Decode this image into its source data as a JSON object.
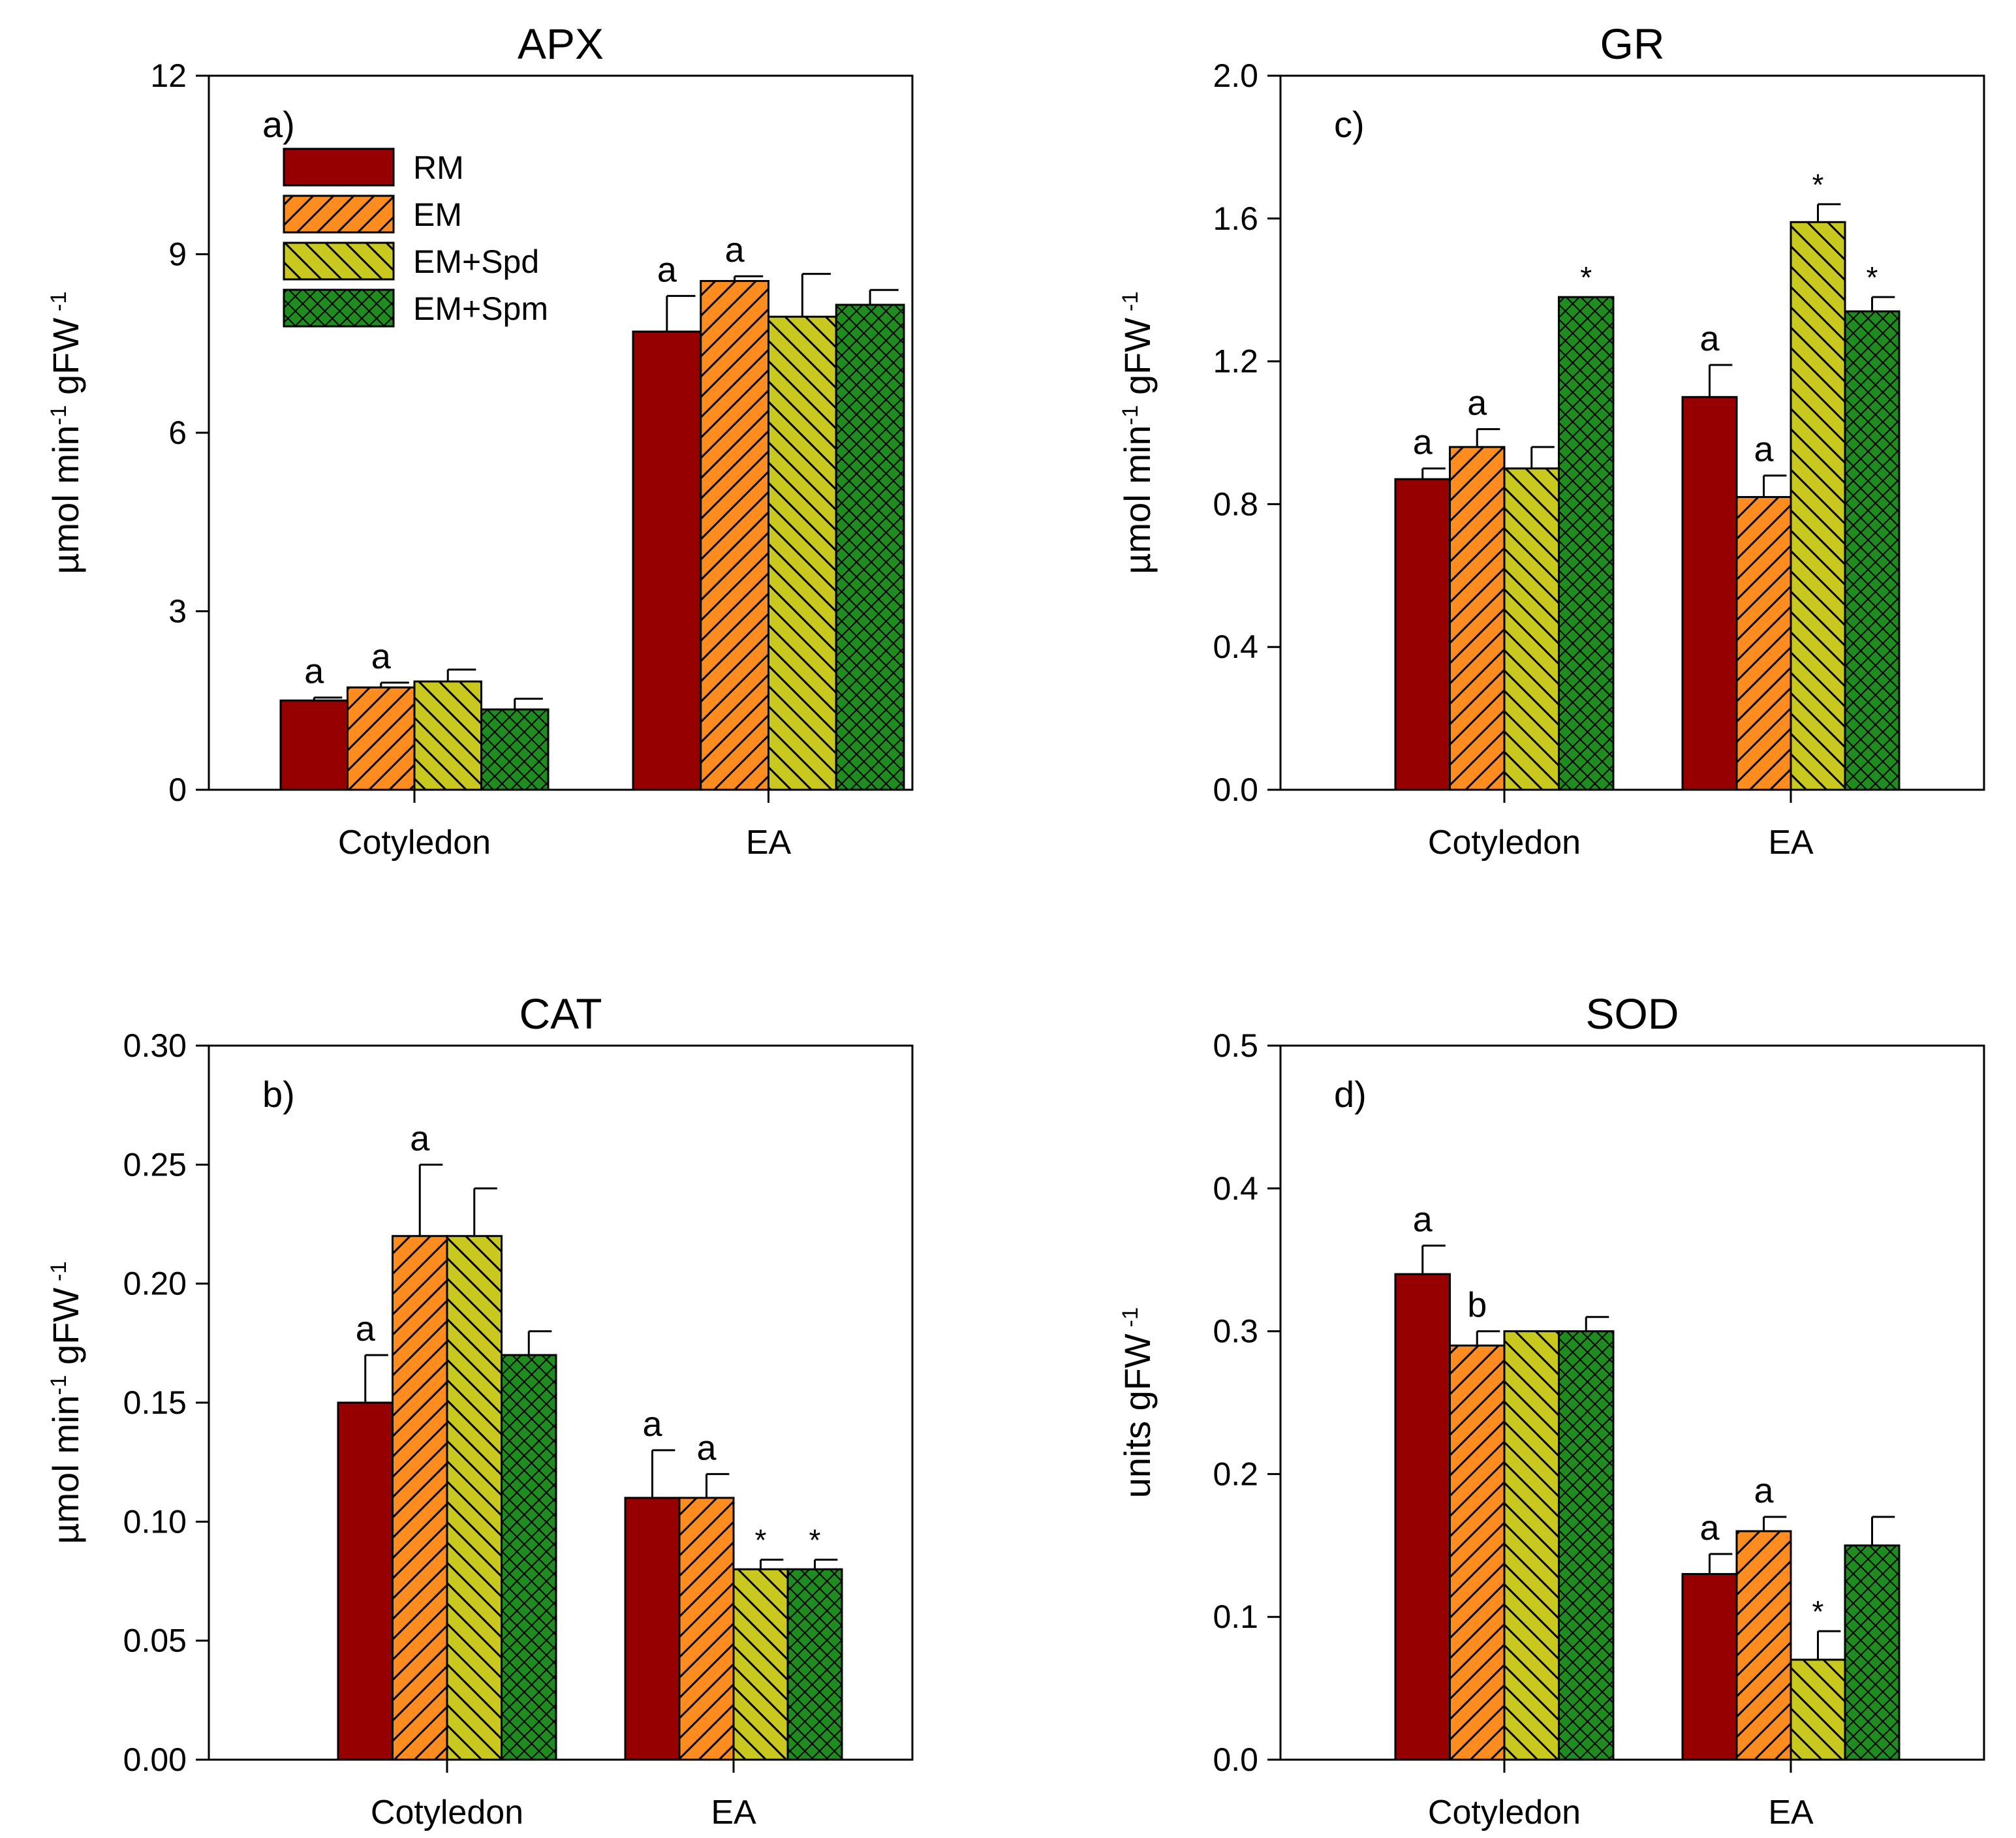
{
  "colors": {
    "RM": "#960000",
    "EM": "#ff8c1e",
    "EM+Spd": "#c8c81e",
    "EM+Spm": "#1e8c1e",
    "hatch_line": "#000000",
    "axis": "#000000"
  },
  "legend_items": [
    {
      "label": "RM",
      "pattern": "solid",
      "color": "#960000"
    },
    {
      "label": "EM",
      "pattern": "diag-fwd",
      "color": "#ff8c1e"
    },
    {
      "label": "EM+Spd",
      "pattern": "diag-back",
      "color": "#c8c81e"
    },
    {
      "label": "EM+Spm",
      "pattern": "crosshatch",
      "color": "#1e8c1e"
    }
  ],
  "chart_data": [
    {
      "id": "apx",
      "type": "bar",
      "title": "APX",
      "panel_label": "a)",
      "ylabel_html": "µmol min<tspan baseline-shift=\"super\" font-size=\"62%\">-1</tspan> gFW<tspan baseline-shift=\"super\" font-size=\"62%\"> -1</tspan>",
      "ylabel_plain": "µmol min-1 gFW -1",
      "xlabel": "",
      "categories": [
        "Cotyledon",
        "EA"
      ],
      "ylim": [
        0,
        12
      ],
      "yticks": [
        "0",
        "3",
        "6",
        "9",
        "12"
      ],
      "ytick_values": [
        0,
        3,
        6,
        9,
        12
      ],
      "series": [
        {
          "name": "RM",
          "values": [
            1.5,
            7.7
          ],
          "errors": [
            0.05,
            0.6
          ],
          "labels": [
            "a",
            "a"
          ]
        },
        {
          "name": "EM",
          "values": [
            1.72,
            8.55
          ],
          "errors": [
            0.08,
            0.08
          ],
          "labels": [
            "a",
            "a"
          ]
        },
        {
          "name": "EM+Spd",
          "values": [
            1.82,
            7.95
          ],
          "errors": [
            0.2,
            0.72
          ],
          "labels": [
            "",
            ""
          ]
        },
        {
          "name": "EM+Spm",
          "values": [
            1.35,
            8.15
          ],
          "errors": [
            0.18,
            0.25
          ],
          "labels": [
            "",
            ""
          ]
        }
      ],
      "legend": true
    },
    {
      "id": "cat",
      "type": "bar",
      "title": "CAT",
      "panel_label": "b)",
      "ylabel_html": "µmol min<tspan baseline-shift=\"super\" font-size=\"62%\">-1</tspan> gFW<tspan baseline-shift=\"super\" font-size=\"62%\"> -1</tspan>",
      "ylabel_plain": "µmol min-1 gFW -1",
      "xlabel": "",
      "categories": [
        "Cotyledon",
        "EA"
      ],
      "ylim": [
        0,
        0.3
      ],
      "yticks": [
        "0.00",
        "0.05",
        "0.10",
        "0.15",
        "0.20",
        "0.25",
        "0.30"
      ],
      "ytick_values": [
        0,
        0.05,
        0.1,
        0.15,
        0.2,
        0.25,
        0.3
      ],
      "series": [
        {
          "name": "RM",
          "values": [
            0.15,
            0.11
          ],
          "errors": [
            0.02,
            0.02
          ],
          "labels": [
            "a",
            "a"
          ]
        },
        {
          "name": "EM",
          "values": [
            0.22,
            0.11
          ],
          "errors": [
            0.03,
            0.01
          ],
          "labels": [
            "a",
            "a"
          ]
        },
        {
          "name": "EM+Spd",
          "values": [
            0.22,
            0.08
          ],
          "errors": [
            0.02,
            0.004
          ],
          "labels": [
            "",
            "*"
          ]
        },
        {
          "name": "EM+Spm",
          "values": [
            0.17,
            0.08
          ],
          "errors": [
            0.01,
            0.004
          ],
          "labels": [
            "",
            "*"
          ]
        }
      ],
      "legend": false
    },
    {
      "id": "gr",
      "type": "bar",
      "title": "GR",
      "panel_label": "c)",
      "ylabel_html": "µmol min<tspan baseline-shift=\"super\" font-size=\"62%\">-1</tspan> gFW<tspan baseline-shift=\"super\" font-size=\"62%\"> -1</tspan>",
      "ylabel_plain": "µmol min-1 gFW -1",
      "xlabel": "",
      "categories": [
        "Cotyledon",
        "EA"
      ],
      "ylim": [
        0,
        2.0
      ],
      "yticks": [
        "0.0",
        "0.4",
        "0.8",
        "1.2",
        "1.6",
        "2.0"
      ],
      "ytick_values": [
        0,
        0.4,
        0.8,
        1.2,
        1.6,
        2.0
      ],
      "series": [
        {
          "name": "RM",
          "values": [
            0.87,
            1.1
          ],
          "errors": [
            0.03,
            0.09
          ],
          "labels": [
            "a",
            "a"
          ]
        },
        {
          "name": "EM",
          "values": [
            0.96,
            0.82
          ],
          "errors": [
            0.05,
            0.06
          ],
          "labels": [
            "a",
            "a"
          ]
        },
        {
          "name": "EM+Spd",
          "values": [
            0.9,
            1.59
          ],
          "errors": [
            0.06,
            0.05
          ],
          "labels": [
            "",
            "*"
          ]
        },
        {
          "name": "EM+Spm",
          "values": [
            1.38,
            1.34
          ],
          "errors": [
            0.0,
            0.04
          ],
          "labels": [
            "*",
            "*"
          ]
        }
      ],
      "legend": false
    },
    {
      "id": "sod",
      "type": "bar",
      "title": "SOD",
      "panel_label": "d)",
      "ylabel_html": "units gFW<tspan baseline-shift=\"super\" font-size=\"62%\"> -1</tspan>",
      "ylabel_plain": "units gFW -1",
      "xlabel": "",
      "categories": [
        "Cotyledon",
        "EA"
      ],
      "ylim": [
        0,
        0.5
      ],
      "yticks": [
        "0.0",
        "0.1",
        "0.2",
        "0.3",
        "0.4",
        "0.5"
      ],
      "ytick_values": [
        0,
        0.1,
        0.2,
        0.3,
        0.4,
        0.5
      ],
      "series": [
        {
          "name": "RM",
          "values": [
            0.34,
            0.13
          ],
          "errors": [
            0.02,
            0.014
          ],
          "labels": [
            "a",
            "a"
          ]
        },
        {
          "name": "EM",
          "values": [
            0.29,
            0.16
          ],
          "errors": [
            0.01,
            0.01
          ],
          "labels": [
            "b",
            "a"
          ]
        },
        {
          "name": "EM+Spd",
          "values": [
            0.3,
            0.07
          ],
          "errors": [
            0.0,
            0.02
          ],
          "labels": [
            "",
            "*"
          ]
        },
        {
          "name": "EM+Spm",
          "values": [
            0.3,
            0.15
          ],
          "errors": [
            0.01,
            0.02
          ],
          "labels": [
            "",
            ""
          ]
        }
      ],
      "legend": false
    }
  ]
}
